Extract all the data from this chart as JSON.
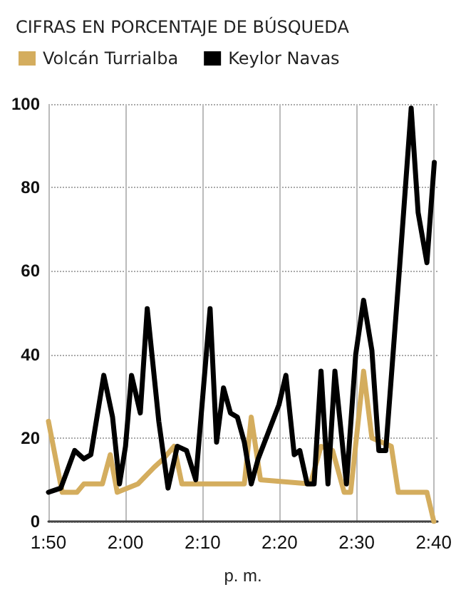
{
  "chart_data": {
    "type": "line",
    "title": "CIFRAS EN PORCENTAJE DE BÚSQUEDA",
    "xlabel": "p. m.",
    "xlim": [
      1.8333,
      2.675
    ],
    "ylim": [
      0,
      100
    ],
    "xticks": [
      {
        "value": 1.8333,
        "label": "1:50"
      },
      {
        "value": 2,
        "label": "2:00"
      },
      {
        "value": 2.1667,
        "label": "2:10"
      },
      {
        "value": 2.3333,
        "label": "2:20"
      },
      {
        "value": 2.5,
        "label": "2:30"
      },
      {
        "value": 2.6667,
        "label": "2:40"
      }
    ],
    "yticks": [
      0,
      20,
      40,
      60,
      80,
      100
    ],
    "grid": true,
    "legend": "top left",
    "marker": "none",
    "line_style": "solid",
    "series": [
      {
        "name": "Volcán Turrialba",
        "color": "#d4ad5e",
        "x": [
          1.8333,
          1.863,
          1.895,
          1.91,
          1.95,
          1.967,
          1.982,
          2.027,
          2.062,
          2.082,
          2.105,
          2.122,
          2.257,
          2.272,
          2.292,
          2.4,
          2.423,
          2.448,
          2.473,
          2.487,
          2.515,
          2.533,
          2.575,
          2.59,
          2.652,
          2.667
        ],
        "values": [
          24,
          7,
          7,
          9,
          9,
          16,
          7,
          9,
          13,
          15,
          18,
          9,
          9,
          25,
          10,
          9,
          18,
          17,
          7,
          7,
          36,
          20,
          18,
          7,
          7,
          0
        ]
      },
      {
        "name": "Keylor Navas",
        "color": "#000000",
        "x": [
          1.8333,
          1.86,
          1.89,
          1.91,
          1.925,
          1.953,
          1.972,
          1.987,
          2.0,
          2.013,
          2.032,
          2.047,
          2.072,
          2.092,
          2.112,
          2.132,
          2.152,
          2.183,
          2.197,
          2.212,
          2.227,
          2.242,
          2.257,
          2.272,
          2.287,
          2.332,
          2.347,
          2.365,
          2.377,
          2.393,
          2.408,
          2.423,
          2.438,
          2.453,
          2.478,
          2.498,
          2.515,
          2.533,
          2.548,
          2.563,
          2.593,
          2.618,
          2.633,
          2.652,
          2.668
        ],
        "values": [
          7,
          8,
          17,
          15,
          16,
          35,
          25,
          9,
          18,
          35,
          26,
          51,
          24,
          8,
          18,
          17,
          10,
          51,
          19,
          32,
          26,
          25,
          19,
          9,
          15,
          28,
          35,
          16,
          17,
          9,
          9,
          36,
          9,
          36,
          9,
          40,
          53,
          41,
          17,
          17,
          61,
          99,
          74,
          62,
          86
        ]
      }
    ]
  }
}
